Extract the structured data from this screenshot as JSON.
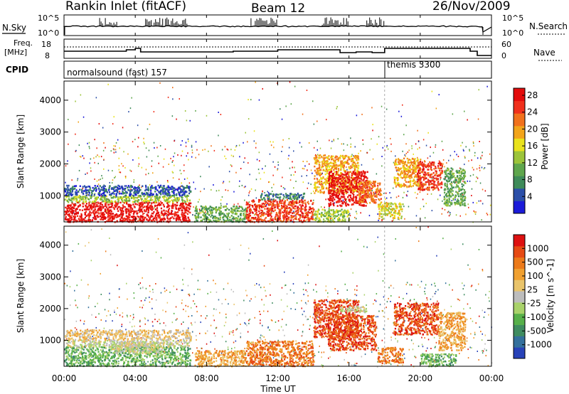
{
  "header": {
    "station": "Rankin Inlet (fitACF)",
    "beam": "Beam 12",
    "date": "26/Nov/2009"
  },
  "nsky_panel": {
    "left_label": "N.Sky",
    "right_label": "N.Search",
    "left_ticks": [
      "10^5",
      "10^0"
    ],
    "right_ticks": [
      "10^5",
      "10^0"
    ]
  },
  "freq_panel": {
    "left_label_1": "Freq.",
    "left_label_2": "[MHz]",
    "right_label": "Nave",
    "left_ticks": [
      "18",
      "8"
    ],
    "right_ticks": [
      "60",
      "0"
    ]
  },
  "cpid_panel": {
    "label": "CPID",
    "segments": [
      {
        "text": "normalsound (fast) 157",
        "start_hour": 0
      },
      {
        "text": "themis 3300",
        "start_hour": 18
      }
    ]
  },
  "chart_data": [
    {
      "type": "heatmap",
      "name": "Power",
      "ylabel": "Slant Range [km]",
      "yticks": [
        1000,
        2000,
        3000,
        4000
      ],
      "ylim": [
        180,
        4600
      ],
      "xlim": [
        0,
        24
      ],
      "colorbar": {
        "label": "Power [dB]",
        "ticks": [
          "4",
          "8",
          "12",
          "16",
          "20",
          "24",
          "28"
        ],
        "colors": [
          "#1b1bd9",
          "#2c4fa8",
          "#3f8b5a",
          "#5fa64d",
          "#9cc43a",
          "#e9e21c",
          "#f2a41a",
          "#f1711c",
          "#f0301c",
          "#e30c0c"
        ]
      },
      "regions": [
        {
          "x": [
            0.0,
            7.1
          ],
          "y": [
            200,
            820
          ],
          "level": 9
        },
        {
          "x": [
            0.0,
            7.1
          ],
          "y": [
            820,
            1030
          ],
          "level": 4
        },
        {
          "x": [
            0.0,
            7.1
          ],
          "y": [
            1030,
            1350
          ],
          "level": 1
        },
        {
          "x": [
            7.3,
            10.2
          ],
          "y": [
            200,
            700
          ],
          "level": 3
        },
        {
          "x": [
            10.2,
            14.0
          ],
          "y": [
            200,
            900
          ],
          "level": 8
        },
        {
          "x": [
            11.0,
            13.5
          ],
          "y": [
            900,
            1100
          ],
          "level": 2
        },
        {
          "x": [
            14.0,
            16.0
          ],
          "y": [
            200,
            600
          ],
          "level": 4
        },
        {
          "x": [
            14.0,
            16.5
          ],
          "y": [
            1100,
            2300
          ],
          "level": 6
        },
        {
          "x": [
            14.8,
            17.0
          ],
          "y": [
            700,
            1800
          ],
          "level": 9
        },
        {
          "x": [
            16.5,
            17.8
          ],
          "y": [
            800,
            1500
          ],
          "level": 7
        },
        {
          "x": [
            18.5,
            20.0
          ],
          "y": [
            1300,
            2200
          ],
          "level": 6
        },
        {
          "x": [
            19.8,
            21.2
          ],
          "y": [
            1200,
            2100
          ],
          "level": 8
        },
        {
          "x": [
            21.3,
            22.5
          ],
          "y": [
            700,
            1900
          ],
          "level": 3
        },
        {
          "x": [
            17.6,
            19.0
          ],
          "y": [
            300,
            800
          ],
          "level": 5
        }
      ]
    },
    {
      "type": "heatmap",
      "name": "Velocity",
      "ylabel": "Slant Range [km]",
      "xlabel": "Time UT",
      "yticks": [
        1000,
        2000,
        3000,
        4000
      ],
      "ylim": [
        180,
        4600
      ],
      "xlim": [
        0,
        24
      ],
      "xticklabels": [
        "00:00",
        "04:00",
        "08:00",
        "12:00",
        "16:00",
        "20:00",
        "00:00"
      ],
      "colorbar": {
        "label": "Velocity [m s^-1]",
        "ticks": [
          "1000",
          "500",
          "100",
          "25",
          "-25",
          "-100",
          "-500",
          "-1000"
        ],
        "colors": [
          "#2842b8",
          "#34709c",
          "#3f8c60",
          "#57b04a",
          "#a9d26a",
          "#bdbdbd",
          "#e9c46b",
          "#f0a030",
          "#ec7a1a",
          "#e64a14",
          "#dd1111"
        ]
      },
      "regions": [
        {
          "x": [
            0.0,
            7.1
          ],
          "y": [
            200,
            820
          ],
          "level": 3
        },
        {
          "x": [
            0.0,
            7.1
          ],
          "y": [
            820,
            1030
          ],
          "level": 5
        },
        {
          "x": [
            0.0,
            7.1
          ],
          "y": [
            1030,
            1350
          ],
          "level": 6
        },
        {
          "x": [
            2.5,
            5.5
          ],
          "y": [
            600,
            1000
          ],
          "level": 5
        },
        {
          "x": [
            7.3,
            10.2
          ],
          "y": [
            200,
            700
          ],
          "level": 7
        },
        {
          "x": [
            10.2,
            14.0
          ],
          "y": [
            200,
            1000
          ],
          "level": 8
        },
        {
          "x": [
            14.0,
            16.5
          ],
          "y": [
            1100,
            2300
          ],
          "level": 9
        },
        {
          "x": [
            14.8,
            17.5
          ],
          "y": [
            700,
            1800
          ],
          "level": 9
        },
        {
          "x": [
            15.5,
            17.0
          ],
          "y": [
            1900,
            2100
          ],
          "level": 5
        },
        {
          "x": [
            18.5,
            21.0
          ],
          "y": [
            1200,
            2200
          ],
          "level": 9
        },
        {
          "x": [
            21.0,
            22.5
          ],
          "y": [
            700,
            1900
          ],
          "level": 7
        },
        {
          "x": [
            17.6,
            19.0
          ],
          "y": [
            300,
            800
          ],
          "level": 8
        },
        {
          "x": [
            20.0,
            22.0
          ],
          "y": [
            200,
            600
          ],
          "level": 3
        }
      ]
    }
  ]
}
